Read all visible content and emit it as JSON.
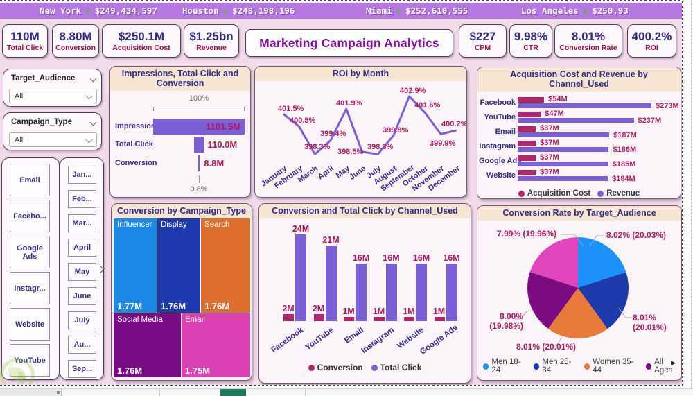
{
  "ticker": {
    "items": [
      {
        "city": "New York",
        "change": "up",
        "value": "$249,434,597"
      },
      {
        "city": "Houston",
        "change": "up",
        "value": "$248,198,196"
      },
      {
        "city": "Miami",
        "change": "up",
        "value": "$252,610,555"
      },
      {
        "city": "Los Angeles",
        "change": "up",
        "value": "$250,93"
      }
    ]
  },
  "title": "Marketing Campaign Analytics",
  "kpi_cards_left": [
    {
      "value": "110M",
      "label": "Total Click"
    },
    {
      "value": "8.80M",
      "label": "Conversion"
    },
    {
      "value": "$250.1M",
      "label": "Acquisition Cost"
    },
    {
      "value": "$1.25bn",
      "label": "Revenue"
    }
  ],
  "kpi_cards_right": [
    {
      "value": "$227",
      "label": "CPM"
    },
    {
      "value": "9.98%",
      "label": "CTR"
    },
    {
      "value": "8.01%",
      "label": "Conversion Rate"
    },
    {
      "value": "400.2%",
      "label": "ROI"
    }
  ],
  "filters": [
    {
      "label": "Target_Audience",
      "value": "All"
    },
    {
      "label": "Campaign_Type",
      "value": "All"
    }
  ],
  "channel_buttons": [
    "Email",
    "Facebo...",
    "Google Ads",
    "Instagr...",
    "Website",
    "YouTube"
  ],
  "month_buttons": [
    "Jan...",
    "Feb...",
    "Mar...",
    "April",
    "May",
    "June",
    "July",
    "Au...",
    "Sep..."
  ],
  "colors": {
    "ticker_bg": "#B577E1",
    "arrow_green": "#55BD17",
    "dash_bg": "#F1DAEA",
    "header_peach": "#F7E5D3",
    "indigo_text": "#332C87",
    "magenta_label": "#B01963",
    "magenta_series": "#B3266E",
    "purple_series": "#7B5FD6",
    "title_purple": "#7D0FA6",
    "kpi_label_crimson": "#A40E53",
    "active_sheet_teal": "#1D7A5F"
  },
  "chart_data": [
    {
      "type": "funnel",
      "title": "Impressions, Total Click and Conversion",
      "categories": [
        "Impressions",
        "Total Click",
        "Conversion"
      ],
      "values": [
        1101.5,
        110.0,
        8.8
      ],
      "value_labels": [
        "1101.5M",
        "110.0M",
        "8.8M"
      ],
      "top_label": "100%",
      "bottom_label": "0.8%"
    },
    {
      "type": "line",
      "title": "ROI by Month",
      "x": [
        "January",
        "February",
        "March",
        "April",
        "May",
        "June",
        "July",
        "August",
        "September",
        "October",
        "November",
        "December"
      ],
      "values": [
        401.5,
        400.5,
        398.3,
        399.4,
        401.9,
        398.5,
        398.3,
        399.8,
        402.9,
        401.6,
        399.9,
        400.2
      ],
      "value_labels": [
        "401.5%",
        "400.5%",
        "398.3%",
        "399.4%",
        "401.9%",
        "398.5%",
        "398.3%",
        "399.8%",
        "402.9%",
        "401.6%",
        "399.9%",
        "400.2%"
      ],
      "ylim": [
        398,
        403.2
      ],
      "grid": false
    },
    {
      "type": "bar-horizontal",
      "title": "Acquisition Cost and Revenue by Channel_Used",
      "categories": [
        "Facebook",
        "YouTube",
        "Email",
        "Instagram",
        "Google Ads",
        "Website"
      ],
      "series": [
        {
          "name": "Acquisition Cost",
          "color": "#B3266E",
          "values": [
            54,
            47,
            37,
            37,
            37,
            37
          ],
          "labels": [
            "$54M",
            "$47M",
            "$37M",
            "$37M",
            "$37M",
            "$37M"
          ]
        },
        {
          "name": "Revenue",
          "color": "#7B5FD6",
          "values": [
            273,
            237,
            187,
            186,
            185,
            184
          ],
          "labels": [
            "$273M",
            "$237M",
            "$187M",
            "$186M",
            "$185M",
            "$184M"
          ]
        }
      ],
      "xmax": 273,
      "legend_position": "bottom"
    },
    {
      "type": "treemap",
      "title": "Conversion by Campaign_Type",
      "items": [
        {
          "name": "Influencer",
          "value_label": "1.77M",
          "color": "#1E88E8"
        },
        {
          "name": "Display",
          "value_label": "1.76M",
          "color": "#1F3AAE"
        },
        {
          "name": "Search",
          "value_label": "1.76M",
          "color": "#DE6E2E"
        },
        {
          "name": "Social Media",
          "value_label": "1.76M",
          "color": "#7A0D86"
        },
        {
          "name": "Email",
          "value_label": "1.75M",
          "color": "#DE41B3"
        }
      ]
    },
    {
      "type": "bar",
      "title": "Conversion and Total Click by Channel_Used",
      "categories": [
        "Facebook",
        "YouTube",
        "Email",
        "Instagram",
        "Website",
        "Google Ads"
      ],
      "series": [
        {
          "name": "Conversion",
          "color": "#B3266E",
          "values": [
            2,
            2,
            1,
            1,
            1,
            1
          ],
          "labels": [
            "2M",
            "2M",
            "1M",
            "1M",
            "1M",
            "1M"
          ]
        },
        {
          "name": "Total Click",
          "color": "#7B5FD6",
          "values": [
            24,
            21,
            16,
            16,
            16,
            16
          ],
          "labels": [
            "24M",
            "21M",
            "16M",
            "16M",
            "16M",
            "16M"
          ]
        }
      ],
      "ymax": 24,
      "legend_position": "bottom"
    },
    {
      "type": "pie",
      "title": "Conversion Rate by Target_Audience",
      "slices": [
        {
          "name": "Men 18-24",
          "label": "8.02% (20.03%)",
          "value": 20.03,
          "color": "#1E90FA"
        },
        {
          "name": "Men 25-34",
          "label": "8.01% (20.01%)",
          "value": 20.01,
          "color": "#1F3BAB"
        },
        {
          "name": "Women 35-44",
          "label": "8.01% (20.01%)",
          "value": 20.01,
          "color": "#E87A3C"
        },
        {
          "name": "All Ages",
          "label": "8.00% (19.98%)",
          "value": 19.98,
          "color": "#7B0B80"
        },
        {
          "name": "",
          "label": "7.99% (19.96%)",
          "value": 19.96,
          "color": "#E145BC"
        }
      ],
      "legend": [
        "Men 18-24",
        "Men 25-34",
        "Women 35-44",
        "All Ages"
      ],
      "legend_position": "bottom"
    }
  ]
}
